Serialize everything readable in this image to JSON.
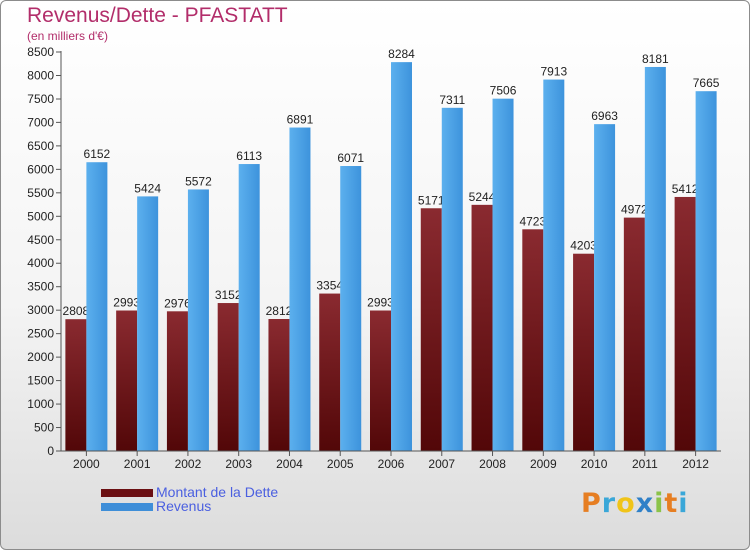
{
  "header": {
    "title": "Revenus/Dette - PFASTATT",
    "subtitle": "(en milliers d'€)"
  },
  "chart_data": {
    "type": "bar",
    "categories": [
      "2000",
      "2001",
      "2002",
      "2003",
      "2004",
      "2005",
      "2006",
      "2007",
      "2008",
      "2009",
      "2010",
      "2011",
      "2012"
    ],
    "series": [
      {
        "name": "Montant de la Dette",
        "color": "#7a1e22",
        "values": [
          2808,
          2993,
          2976,
          3152,
          2812,
          3354,
          2993,
          5171,
          5244,
          4723,
          4203,
          4972,
          5412
        ]
      },
      {
        "name": "Revenus",
        "color": "#4a9fe3",
        "values": [
          6152,
          5424,
          5572,
          6113,
          6891,
          6071,
          8284,
          7311,
          7506,
          7913,
          6963,
          8181,
          7665
        ]
      }
    ],
    "ylim": [
      0,
      8500
    ],
    "y_ticks": [
      0,
      500,
      1000,
      1500,
      2000,
      2500,
      3000,
      3500,
      4000,
      4500,
      5000,
      5500,
      6000,
      6500,
      7000,
      7500,
      8000,
      8500
    ],
    "grid": false,
    "legend_position": "bottom-left"
  },
  "legend": {
    "items": [
      {
        "label": "Montant de la Dette",
        "color": "#6b0f12"
      },
      {
        "label": "Revenus",
        "color": "#3e8ed8"
      }
    ]
  },
  "logo": {
    "text": "Proxiti",
    "letters": [
      {
        "ch": "P",
        "color": "#e67e22"
      },
      {
        "ch": "r",
        "color": "#3aa7d8"
      },
      {
        "ch": "o",
        "color": "#f0c419"
      },
      {
        "ch": "x",
        "color": "#2f80c8"
      },
      {
        "ch": "i",
        "color": "#8bc34a"
      },
      {
        "ch": "t",
        "color": "#e67e22"
      },
      {
        "ch": "i",
        "color": "#3aa7d8"
      }
    ]
  }
}
